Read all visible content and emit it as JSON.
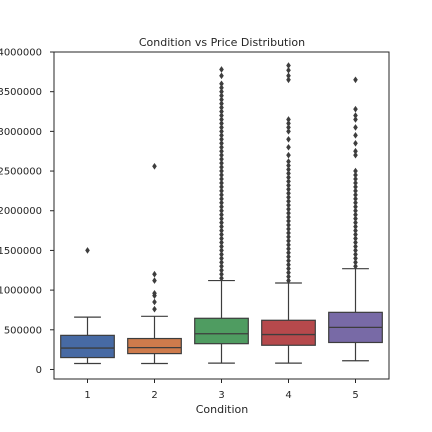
{
  "chart_data": {
    "type": "box",
    "title": "Condition vs Price Distribution",
    "xlabel": "Condition",
    "ylabel": "",
    "categories": [
      "1",
      "2",
      "3",
      "4",
      "5"
    ],
    "ylim": [
      -120000,
      4000000
    ],
    "yticks": [
      0,
      500000,
      1000000,
      1500000,
      2000000,
      2500000,
      3000000,
      3500000,
      4000000
    ],
    "ytick_labels": [
      "0",
      "500000",
      "1000000",
      "1500000",
      "2000000",
      "2500000",
      "3000000",
      "3500000",
      "4000000"
    ],
    "grid": false,
    "boxes": [
      {
        "category": "1",
        "color": "#4c72b0",
        "whisker_low": 75000,
        "q1": 150000,
        "median": 270000,
        "q3": 430000,
        "whisker_high": 660000,
        "outliers": [
          1500000
        ]
      },
      {
        "category": "2",
        "color": "#dd8452",
        "whisker_low": 75000,
        "q1": 200000,
        "median": 275000,
        "q3": 390000,
        "whisker_high": 670000,
        "outliers": [
          760000,
          850000,
          930000,
          960000,
          1120000,
          1200000,
          2560000
        ]
      },
      {
        "category": "3",
        "color": "#55a868",
        "whisker_low": 80000,
        "q1": 325000,
        "median": 450000,
        "q3": 645000,
        "whisker_high": 1120000,
        "outliers": [
          1150000,
          1200000,
          1250000,
          1300000,
          1350000,
          1400000,
          1450000,
          1500000,
          1550000,
          1600000,
          1650000,
          1700000,
          1750000,
          1800000,
          1850000,
          1900000,
          1950000,
          2000000,
          2050000,
          2100000,
          2150000,
          2200000,
          2250000,
          2300000,
          2350000,
          2400000,
          2450000,
          2500000,
          2550000,
          2600000,
          2650000,
          2700000,
          2750000,
          2800000,
          2850000,
          2900000,
          2950000,
          3000000,
          3050000,
          3100000,
          3150000,
          3200000,
          3250000,
          3300000,
          3350000,
          3400000,
          3450000,
          3500000,
          3550000,
          3600000,
          3700000,
          3780000
        ]
      },
      {
        "category": "4",
        "color": "#c44e52",
        "whisker_low": 80000,
        "q1": 305000,
        "median": 440000,
        "q3": 620000,
        "whisker_high": 1090000,
        "outliers": [
          1120000,
          1170000,
          1220000,
          1270000,
          1320000,
          1370000,
          1420000,
          1470000,
          1520000,
          1570000,
          1620000,
          1670000,
          1720000,
          1770000,
          1820000,
          1870000,
          1920000,
          1970000,
          2020000,
          2070000,
          2120000,
          2170000,
          2220000,
          2270000,
          2320000,
          2370000,
          2420000,
          2470000,
          2520000,
          2570000,
          2620000,
          2700000,
          2800000,
          2900000,
          3000000,
          3050000,
          3100000,
          3150000,
          3650000,
          3700000,
          3770000,
          3830000
        ]
      },
      {
        "category": "5",
        "color": "#8172b3",
        "whisker_low": 110000,
        "q1": 340000,
        "median": 530000,
        "q3": 720000,
        "whisker_high": 1270000,
        "outliers": [
          1300000,
          1350000,
          1400000,
          1450000,
          1500000,
          1550000,
          1600000,
          1650000,
          1700000,
          1750000,
          1800000,
          1850000,
          1900000,
          1950000,
          2000000,
          2050000,
          2100000,
          2150000,
          2200000,
          2250000,
          2300000,
          2350000,
          2400000,
          2450000,
          2500000,
          2700000,
          2750000,
          2850000,
          2950000,
          3050000,
          3150000,
          3200000,
          3280000,
          3650000
        ]
      }
    ]
  }
}
